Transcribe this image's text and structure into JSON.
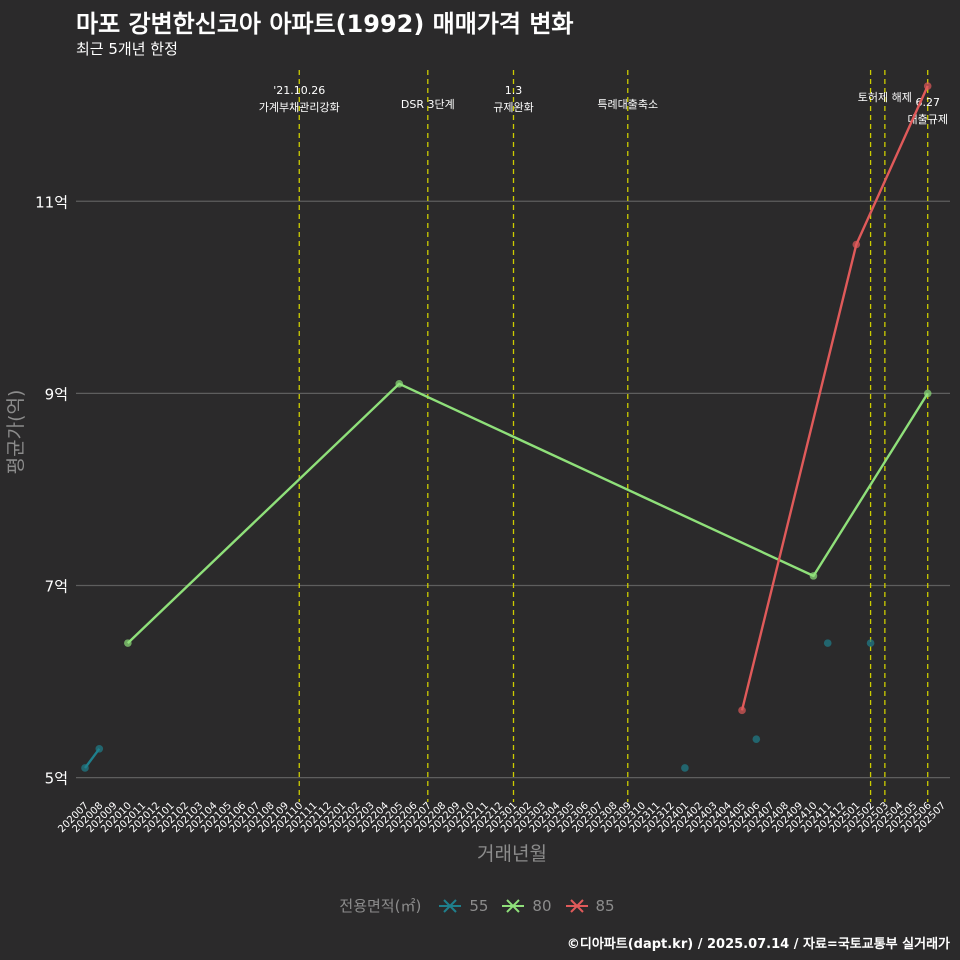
{
  "chart_data": {
    "type": "line",
    "title": "마포 강변한신코아 아파트(1992) 매매가격 변화",
    "subtitle": "최근 5개년 한정",
    "xlabel": "거래년월",
    "ylabel": "평균가(억)",
    "caption": "©디아파트(dapt.kr) / 2025.07.14 / 자료=국토교통부 실거래가",
    "categories": [
      "202007",
      "202008",
      "202009",
      "202010",
      "202011",
      "202012",
      "202101",
      "202102",
      "202103",
      "202104",
      "202105",
      "202106",
      "202107",
      "202108",
      "202109",
      "202110",
      "202111",
      "202112",
      "202201",
      "202202",
      "202203",
      "202204",
      "202205",
      "202206",
      "202207",
      "202208",
      "202209",
      "202210",
      "202211",
      "202212",
      "202301",
      "202302",
      "202303",
      "202304",
      "202305",
      "202306",
      "202307",
      "202308",
      "202309",
      "202310",
      "202311",
      "202312",
      "202401",
      "202402",
      "202403",
      "202404",
      "202405",
      "202406",
      "202407",
      "202408",
      "202409",
      "202410",
      "202411",
      "202412",
      "202501",
      "202502",
      "202503",
      "202504",
      "202505",
      "202506",
      "202507"
    ],
    "y_ticks": [
      5,
      7,
      9,
      11
    ],
    "y_tick_labels": [
      "5억",
      "7억",
      "9억",
      "11억"
    ],
    "ylim": [
      4.85,
      12.45
    ],
    "grid": true,
    "legend": {
      "title": "전용면적(㎡)",
      "position": "bottom",
      "entries": [
        "55",
        "80",
        "85"
      ]
    },
    "series": [
      {
        "name": "55",
        "color": "#1f7f8c",
        "line_segments": [
          [
            {
              "x": "202007",
              "y": 5.1
            },
            {
              "x": "202008",
              "y": 5.3
            }
          ]
        ],
        "points": [
          {
            "x": "202007",
            "y": 5.1
          },
          {
            "x": "202008",
            "y": 5.3
          },
          {
            "x": "202401",
            "y": 5.1
          },
          {
            "x": "202406",
            "y": 5.4
          },
          {
            "x": "202411",
            "y": 6.4
          },
          {
            "x": "202502",
            "y": 6.4
          }
        ]
      },
      {
        "name": "80",
        "color": "#8fe07a",
        "line_segments": [
          [
            {
              "x": "202010",
              "y": 6.4
            },
            {
              "x": "202205",
              "y": 9.1
            },
            {
              "x": "202410",
              "y": 7.1
            },
            {
              "x": "202506",
              "y": 9.0
            }
          ]
        ],
        "points": [
          {
            "x": "202010",
            "y": 6.4
          },
          {
            "x": "202205",
            "y": 9.1
          },
          {
            "x": "202410",
            "y": 7.1
          },
          {
            "x": "202506",
            "y": 9.0
          }
        ]
      },
      {
        "name": "85",
        "color": "#e05a5a",
        "line_segments": [
          [
            {
              "x": "202405",
              "y": 5.7
            },
            {
              "x": "202501",
              "y": 10.55
            },
            {
              "x": "202506",
              "y": 12.2
            }
          ]
        ],
        "points": [
          {
            "x": "202405",
            "y": 5.7
          },
          {
            "x": "202501",
            "y": 10.55
          },
          {
            "x": "202506",
            "y": 12.2
          }
        ]
      }
    ],
    "events": [
      {
        "x": "202110",
        "lines": [
          "'21.10.26",
          "가계부채관리강화"
        ],
        "level": 0
      },
      {
        "x": "202207",
        "lines": [
          "DSR 3단계"
        ],
        "level": 2
      },
      {
        "x": "202301",
        "lines": [
          "1.3",
          "규제완화"
        ],
        "level": 0
      },
      {
        "x": "202309",
        "lines": [
          "특례대출축소"
        ],
        "level": 2
      },
      {
        "x": "202502",
        "lines": [],
        "level": 1
      },
      {
        "x": "202503",
        "lines": [
          "토허제 해제"
        ],
        "level": 1
      },
      {
        "x": "202506",
        "lines": [
          "6.27",
          "대출규제"
        ],
        "level": 1.7
      }
    ],
    "event_line_color": "#cccc00"
  }
}
